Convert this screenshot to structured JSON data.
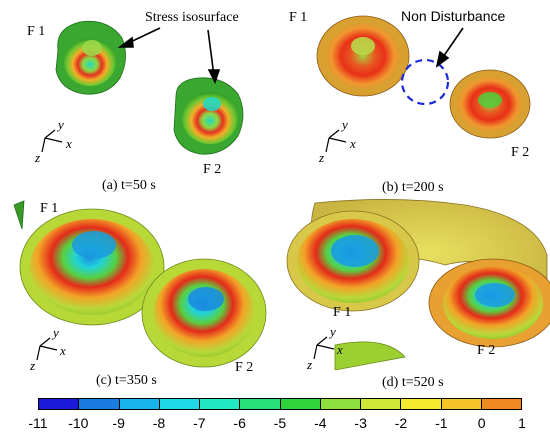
{
  "panels": {
    "a": {
      "caption": "(a) t=50 s",
      "f1": "F 1",
      "f2": "F 2",
      "annotation": "Stress isosurface"
    },
    "b": {
      "caption": "(b) t=200 s",
      "f1": "F 1",
      "f2": "F 2",
      "annotation": "Non Disturbance"
    },
    "c": {
      "caption": "(c) t=350 s",
      "f1": "F 1",
      "f2": "F 2"
    },
    "d": {
      "caption": "(d) t=520 s",
      "f1": "F 1",
      "f2": "F 2"
    }
  },
  "axes": {
    "x": "x",
    "y": "y",
    "z": "z"
  },
  "colorbar": {
    "ticks": [
      "-11",
      "-10",
      "-9",
      "-8",
      "-7",
      "-6",
      "-5",
      "-4",
      "-3",
      "-2",
      "-1",
      "0",
      "1"
    ],
    "colors": [
      "#1a1ad8",
      "#1a7ce0",
      "#18b4ec",
      "#20d8e8",
      "#22e8c4",
      "#28e07a",
      "#2ed43a",
      "#8ee040",
      "#d0e838",
      "#f4ea30",
      "#f4c428",
      "#f08a20",
      "#e41e1e"
    ]
  }
}
